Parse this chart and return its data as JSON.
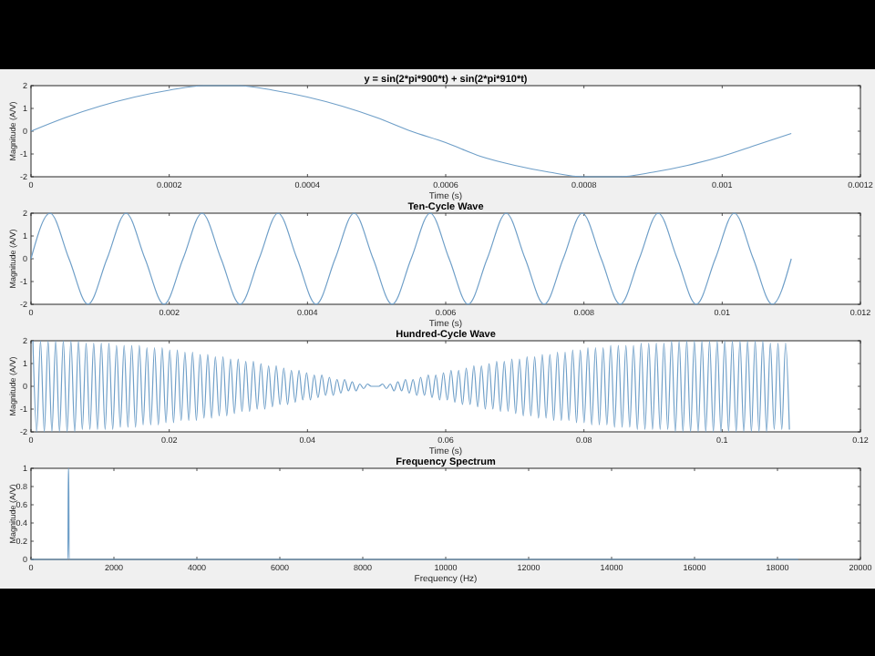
{
  "chart_data": [
    {
      "type": "line",
      "title": "y = sin(2*pi*900*t) + sin(2*pi*910*t)",
      "xlabel": "Time (s)",
      "ylabel": "Magnitude (A/V)",
      "color": "#6f9fc8",
      "xlim": [
        0,
        0.0012
      ],
      "xticks": [
        0,
        0.0002,
        0.0004,
        0.0006,
        0.0008,
        0.001,
        0.0012
      ],
      "ylim": [
        -2,
        2
      ],
      "yticks": [
        -2,
        -1,
        0,
        1,
        2
      ],
      "x": [
        0,
        5e-05,
        0.0001,
        0.00015,
        0.0002,
        0.00025,
        0.0003,
        0.00035,
        0.0004,
        0.00045,
        0.0005,
        0.00055,
        0.0006,
        0.00065,
        0.0007,
        0.00075,
        0.0008,
        0.00085,
        0.0009,
        0.00095,
        0.001,
        0.00105,
        0.0011
      ],
      "values": [
        0,
        0.6,
        1.1,
        1.5,
        1.8,
        2,
        2,
        1.8,
        1.5,
        1.1,
        0.6,
        0,
        -0.5,
        -1.1,
        -1.5,
        -1.8,
        -2,
        -2,
        -1.8,
        -1.5,
        -1.1,
        -0.6,
        -0.1
      ]
    },
    {
      "type": "line",
      "title": "Ten-Cycle Wave",
      "xlabel": "Time (s)",
      "ylabel": "Magnitude (A/V)",
      "color": "#6f9fc8",
      "xlim": [
        0,
        0.012
      ],
      "xticks": [
        0,
        0.002,
        0.004,
        0.006,
        0.008,
        0.01,
        0.012
      ],
      "ylim": [
        -2,
        2
      ],
      "yticks": [
        -2,
        -1,
        0,
        1,
        2
      ],
      "x": [
        0,
        0.000275,
        0.00055,
        0.000825,
        0.0011,
        0.001375,
        0.00165,
        0.001925,
        0.0022,
        0.002475,
        0.00275,
        0.003025,
        0.0033,
        0.003575,
        0.00385,
        0.004125,
        0.0044,
        0.004675,
        0.00495,
        0.005225,
        0.0055,
        0.005775,
        0.00605,
        0.006325,
        0.0066,
        0.006875,
        0.00715,
        0.007425,
        0.0077,
        0.007975,
        0.00825,
        0.008525,
        0.0088,
        0.009075,
        0.00935,
        0.009625,
        0.0099,
        0.010175,
        0.01045,
        0.010725,
        0.011
      ],
      "values": [
        0,
        2,
        0,
        -2,
        0,
        2,
        0,
        -2,
        0,
        2,
        0,
        -2,
        0,
        2,
        0,
        -2,
        0,
        2,
        0,
        -2,
        0,
        2,
        0,
        -2,
        0,
        2,
        0,
        -2,
        0,
        2,
        0,
        -2,
        0,
        2,
        0,
        -2,
        0,
        2,
        0,
        -2,
        0
      ]
    },
    {
      "type": "line",
      "title": "Hundred-Cycle Wave",
      "xlabel": "Time (s)",
      "ylabel": "Magnitude (A/V)",
      "color": "#6f9fc8",
      "xlim": [
        0,
        0.12
      ],
      "xticks": [
        0,
        0.02,
        0.04,
        0.06,
        0.08,
        0.1,
        0.12
      ],
      "ylim": [
        -2,
        2
      ],
      "yticks": [
        -2,
        -1,
        0,
        1,
        2
      ],
      "x": [
        0.000275,
        0.000825,
        0.001375,
        0.001925,
        0.002475,
        0.003025,
        0.003575,
        0.004125,
        0.004675,
        0.005225,
        0.005775,
        0.006325,
        0.006875,
        0.007425,
        0.007975,
        0.008525,
        0.009075,
        0.009625,
        0.010175,
        0.010725,
        0.011275,
        0.011825,
        0.012375,
        0.012925,
        0.013475,
        0.014025,
        0.014575,
        0.015125,
        0.015675,
        0.016225,
        0.016775,
        0.017325,
        0.017875,
        0.018425,
        0.018975,
        0.019525,
        0.020075,
        0.020625,
        0.021175,
        0.021725,
        0.022275,
        0.022825,
        0.023375,
        0.023925,
        0.024475,
        0.025025,
        0.025575,
        0.026125,
        0.026675,
        0.027225,
        0.027775,
        0.028325,
        0.028875,
        0.029425,
        0.029975,
        0.030525,
        0.031075,
        0.031625,
        0.032175,
        0.032725,
        0.033275,
        0.033825,
        0.034375,
        0.034925,
        0.035475,
        0.036025,
        0.036575,
        0.037125,
        0.037675,
        0.038225,
        0.038775,
        0.039325,
        0.039875,
        0.040425,
        0.040975,
        0.041525,
        0.042075,
        0.042625,
        0.043175,
        0.043725,
        0.044275,
        0.044825,
        0.045375,
        0.045925,
        0.046475,
        0.047025,
        0.047575,
        0.048125,
        0.048675,
        0.049225,
        0.049775,
        0.050325,
        0.050875,
        0.051425,
        0.051975,
        0.052525,
        0.053075,
        0.053625,
        0.054175,
        0.054725,
        0.055275,
        0.055825,
        0.056375,
        0.056925,
        0.057475,
        0.058025,
        0.058575,
        0.059125,
        0.059675,
        0.060225,
        0.060775,
        0.061325,
        0.061875,
        0.062425,
        0.062975,
        0.063525,
        0.064075,
        0.064625,
        0.065175,
        0.065725,
        0.066275,
        0.066825,
        0.067375,
        0.067925,
        0.068475,
        0.069025,
        0.069575,
        0.070125,
        0.070675,
        0.071225,
        0.071775,
        0.072325,
        0.072875,
        0.073425,
        0.073975,
        0.074525,
        0.075075,
        0.075625,
        0.076175,
        0.076725,
        0.077275,
        0.077825,
        0.078375,
        0.078925,
        0.079475,
        0.080025,
        0.080575,
        0.081125,
        0.081675,
        0.082225,
        0.082775,
        0.083325,
        0.083875,
        0.084425,
        0.084975,
        0.085525,
        0.086075,
        0.086625,
        0.087175,
        0.087725,
        0.088275,
        0.088825,
        0.089375,
        0.089925,
        0.090475,
        0.091025,
        0.091575,
        0.092125,
        0.092675,
        0.093225,
        0.093775,
        0.094325,
        0.094875,
        0.095425,
        0.095975,
        0.096525,
        0.097075,
        0.097625,
        0.098175,
        0.098725,
        0.099275,
        0.099825,
        0.100375,
        0.100925,
        0.101475,
        0.102025,
        0.102575,
        0.103125,
        0.103675,
        0.104225,
        0.104775,
        0.105325,
        0.105875,
        0.106425,
        0.106975,
        0.107525,
        0.108075,
        0.108625,
        0.109175,
        0.109725
      ],
      "values": [
        2,
        -2,
        2,
        -2,
        2,
        -2,
        2,
        -2,
        2,
        -2,
        2,
        -2,
        2,
        -1.9,
        1.9,
        -1.9,
        1.9,
        -1.9,
        1.9,
        -1.9,
        1.9,
        -1.9,
        1.8,
        -1.8,
        1.8,
        -1.8,
        1.8,
        -1.8,
        1.8,
        -1.7,
        1.7,
        -1.7,
        1.7,
        -1.7,
        1.7,
        -1.6,
        1.6,
        -1.6,
        1.6,
        -1.5,
        1.5,
        -1.5,
        1.5,
        -1.5,
        1.4,
        -1.4,
        1.4,
        -1.4,
        1.3,
        -1.3,
        1.3,
        -1.3,
        1.2,
        -1.2,
        1.2,
        -1.1,
        1.1,
        -1.1,
        1.1,
        -1,
        1,
        -1,
        0.9,
        -0.9,
        0.9,
        -0.8,
        0.8,
        -0.8,
        0.7,
        -0.7,
        0.7,
        -0.6,
        0.6,
        -0.6,
        0.5,
        -0.5,
        0.5,
        -0.4,
        0.4,
        -0.4,
        0.3,
        -0.3,
        0.3,
        -0.2,
        0.2,
        -0.2,
        0.1,
        -0.1,
        0.1,
        0,
        0,
        0,
        0.1,
        -0.1,
        0.1,
        -0.2,
        0.2,
        -0.2,
        0.3,
        -0.3,
        0.3,
        -0.4,
        0.4,
        -0.4,
        0.5,
        -0.5,
        0.5,
        -0.6,
        0.6,
        -0.6,
        0.7,
        -0.7,
        0.7,
        -0.8,
        0.8,
        -0.8,
        0.9,
        -0.9,
        0.9,
        -1,
        1,
        -1,
        1.1,
        -1.1,
        1.1,
        -1.1,
        1.2,
        -1.2,
        1.2,
        -1.3,
        1.3,
        -1.3,
        1.3,
        -1.4,
        1.4,
        -1.4,
        1.4,
        -1.5,
        1.5,
        -1.5,
        1.5,
        -1.5,
        1.6,
        -1.6,
        1.6,
        -1.6,
        1.7,
        -1.7,
        1.7,
        -1.7,
        1.7,
        -1.7,
        1.8,
        -1.8,
        1.8,
        -1.8,
        1.8,
        -1.8,
        1.8,
        -1.9,
        1.9,
        -1.9,
        1.9,
        -1.9,
        1.9,
        -1.9,
        1.9,
        -1.9,
        2,
        -2,
        2,
        -2,
        2,
        -2,
        2,
        -2,
        2,
        -2,
        2,
        -2,
        2,
        -2,
        2,
        -2,
        2,
        -2,
        2,
        -2,
        2,
        -2,
        2,
        -2,
        2,
        -2,
        1.9,
        -1.9,
        1.9,
        -1.9,
        1.9,
        -1.9
      ]
    },
    {
      "type": "line",
      "title": "Frequency Spectrum",
      "xlabel": "Frequency (Hz)",
      "ylabel": "Magnitude (A/V)",
      "color": "#6f9fc8",
      "xlim": [
        0,
        20000
      ],
      "xticks": [
        0,
        2000,
        4000,
        6000,
        8000,
        10000,
        12000,
        14000,
        16000,
        18000,
        20000
      ],
      "ylim": [
        0,
        1
      ],
      "yticks": [
        0,
        0.2,
        0.4,
        0.6,
        0.8,
        1
      ],
      "x": [
        0,
        890,
        900,
        910,
        920,
        18500
      ],
      "values": [
        0,
        0,
        1,
        1,
        0,
        0
      ]
    }
  ]
}
